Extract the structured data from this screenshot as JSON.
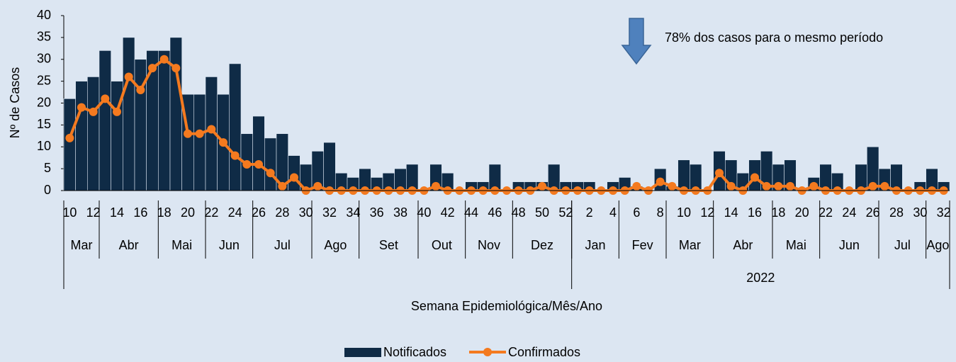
{
  "chart_data": {
    "type": "bar-line",
    "y_label": "Nº de Casos",
    "x_label": "Semana Epidemiológica/Mês/Ano",
    "annotation": "78% dos casos para o mesmo período",
    "categories": [
      "10",
      null,
      "12",
      null,
      "14",
      null,
      "16",
      null,
      "18",
      null,
      "20",
      null,
      "22",
      null,
      "24",
      null,
      "26",
      null,
      "28",
      null,
      "30",
      null,
      "32",
      null,
      "34",
      null,
      "36",
      null,
      "38",
      null,
      "40",
      null,
      "42",
      null,
      "44",
      null,
      "46",
      null,
      "48",
      null,
      "50",
      null,
      "52",
      null,
      "2",
      null,
      "4",
      null,
      "6",
      null,
      "8",
      null,
      "10",
      null,
      "12",
      null,
      "14",
      null,
      "16",
      null,
      "18",
      null,
      "20",
      null,
      "22",
      null,
      "24",
      null,
      "26",
      null,
      "28",
      null,
      "30",
      null,
      "32"
    ],
    "month_groups": [
      {
        "label": "Mar",
        "weeks": 3
      },
      {
        "label": "Abr",
        "weeks": 5
      },
      {
        "label": "Mai",
        "weeks": 4
      },
      {
        "label": "Jun",
        "weeks": 4
      },
      {
        "label": "Jul",
        "weeks": 5
      },
      {
        "label": "Ago",
        "weeks": 4
      },
      {
        "label": "Set",
        "weeks": 5
      },
      {
        "label": "Out",
        "weeks": 4
      },
      {
        "label": "Nov",
        "weeks": 4
      },
      {
        "label": "Dez",
        "weeks": 5
      },
      {
        "label": "Jan",
        "weeks": 4
      },
      {
        "label": "Fev",
        "weeks": 4
      },
      {
        "label": "Mar",
        "weeks": 4
      },
      {
        "label": "Abr",
        "weeks": 5
      },
      {
        "label": "Mai",
        "weeks": 4
      },
      {
        "label": "Jun",
        "weeks": 5
      },
      {
        "label": "Jul",
        "weeks": 4
      },
      {
        "label": "Ago",
        "weeks": 2
      }
    ],
    "year_groups": [
      {
        "label": null,
        "weeks": 43
      },
      {
        "label": "2022",
        "weeks": 32
      }
    ],
    "series": [
      {
        "name": "Notificados",
        "kind": "bar",
        "color": "#0f2b46",
        "values": [
          21,
          25,
          26,
          32,
          25,
          35,
          30,
          32,
          32,
          35,
          22,
          22,
          26,
          22,
          29,
          13,
          17,
          12,
          13,
          8,
          6,
          9,
          11,
          4,
          3,
          5,
          3,
          4,
          5,
          6,
          0,
          6,
          4,
          0,
          2,
          2,
          6,
          0,
          2,
          2,
          2,
          6,
          2,
          2,
          2,
          0,
          2,
          3,
          1,
          0,
          5,
          1,
          7,
          6,
          0,
          9,
          7,
          4,
          7,
          9,
          6,
          7,
          0,
          3,
          6,
          4,
          0,
          6,
          10,
          5,
          6,
          0,
          2,
          5,
          2
        ]
      },
      {
        "name": "Confirmados",
        "kind": "line",
        "color": "#f47a1f",
        "values": [
          12,
          19,
          18,
          21,
          18,
          26,
          23,
          28,
          30,
          28,
          13,
          13,
          14,
          11,
          8,
          6,
          6,
          4,
          1,
          3,
          0,
          1,
          0,
          0,
          0,
          0,
          0,
          0,
          0,
          0,
          0,
          1,
          0,
          0,
          0,
          0,
          0,
          0,
          0,
          0,
          1,
          0,
          0,
          0,
          0,
          0,
          0,
          0,
          1,
          0,
          2,
          1,
          0,
          0,
          0,
          4,
          1,
          0,
          3,
          1,
          1,
          1,
          0,
          1,
          0,
          0,
          0,
          0,
          1,
          1,
          0,
          0,
          0,
          0,
          0
        ]
      }
    ],
    "ylim": [
      0,
      40
    ],
    "yticks": [
      0,
      5,
      10,
      15,
      20,
      25,
      30,
      35,
      40
    ]
  }
}
